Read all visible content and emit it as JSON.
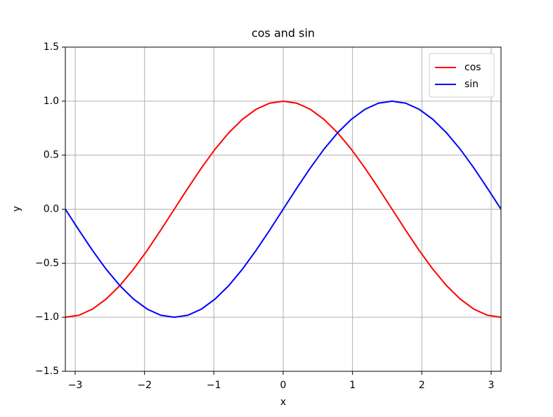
{
  "chart_data": {
    "type": "line",
    "title": "cos and sin",
    "x_label": "x",
    "y_label": "y",
    "x": [
      -3.142,
      -2.945,
      -2.749,
      -2.553,
      -2.356,
      -2.16,
      -1.963,
      -1.767,
      -1.571,
      -1.374,
      -1.178,
      -0.982,
      -0.785,
      -0.589,
      -0.393,
      -0.196,
      0,
      0.196,
      0.393,
      0.589,
      0.785,
      0.982,
      1.178,
      1.374,
      1.571,
      1.767,
      1.963,
      2.16,
      2.356,
      2.553,
      2.749,
      2.945,
      3.142
    ],
    "series": [
      {
        "name": "cos",
        "color": "#ff0000",
        "values": [
          -1,
          -0.981,
          -0.924,
          -0.831,
          -0.707,
          -0.556,
          -0.383,
          -0.195,
          0,
          0.195,
          0.383,
          0.556,
          0.707,
          0.831,
          0.924,
          0.981,
          1,
          0.981,
          0.924,
          0.831,
          0.707,
          0.556,
          0.383,
          0.195,
          0,
          -0.195,
          -0.383,
          -0.556,
          -0.707,
          -0.831,
          -0.924,
          -0.981,
          -1
        ]
      },
      {
        "name": "sin",
        "color": "#0000ff",
        "values": [
          0,
          -0.195,
          -0.383,
          -0.556,
          -0.707,
          -0.831,
          -0.924,
          -0.981,
          -1,
          -0.981,
          -0.924,
          -0.831,
          -0.707,
          -0.556,
          -0.383,
          -0.195,
          0,
          0.195,
          0.383,
          0.556,
          0.707,
          0.831,
          0.924,
          0.981,
          1,
          0.981,
          0.924,
          0.831,
          0.707,
          0.556,
          0.383,
          0.195,
          0
        ]
      }
    ],
    "xlim": [
      -3.142,
      3.142
    ],
    "xticks": [
      {
        "value": -3,
        "label": "−3"
      },
      {
        "value": -2,
        "label": "−2"
      },
      {
        "value": -1,
        "label": "−1"
      },
      0,
      1,
      2,
      3
    ],
    "ylim": [
      -1.5,
      1.5
    ],
    "yticks": [
      {
        "value": -1.5,
        "label": "−1.5"
      },
      {
        "value": -1,
        "label": "−1.0"
      },
      {
        "value": -0.5,
        "label": "−0.5"
      },
      {
        "value": 0,
        "label": "0.0"
      },
      0.5,
      {
        "value": 1,
        "label": "1.0"
      },
      1.5
    ],
    "grid": true,
    "legend": "upper right"
  }
}
